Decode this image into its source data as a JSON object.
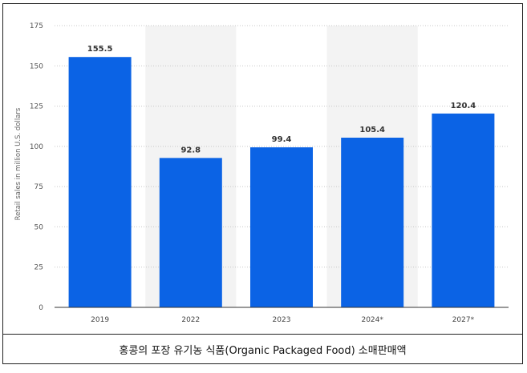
{
  "caption": "홍콩의 포장 유기농 식품(Organic Packaged Food) 소매판매액",
  "chart_data": {
    "type": "bar",
    "categories": [
      "2019",
      "2022",
      "2023",
      "2024*",
      "2027*"
    ],
    "values": [
      155.5,
      92.8,
      99.4,
      105.4,
      120.4
    ],
    "value_labels": [
      "155.5",
      "92.8",
      "99.4",
      "105.4",
      "120.4"
    ],
    "ylabel": "Retail sales in million U.S. dollars",
    "ylim": [
      0,
      175
    ],
    "yticks": [
      0,
      25,
      50,
      75,
      100,
      125,
      150,
      175
    ],
    "ytick_labels": [
      "0",
      "25",
      "50",
      "75",
      "100",
      "125",
      "150",
      "175"
    ],
    "shaded_categories": [
      "2022",
      "2024*"
    ],
    "bar_color": "#0b63e5",
    "shade_color": "#f3f3f3",
    "grid": true,
    "grid_style": "dotted"
  }
}
